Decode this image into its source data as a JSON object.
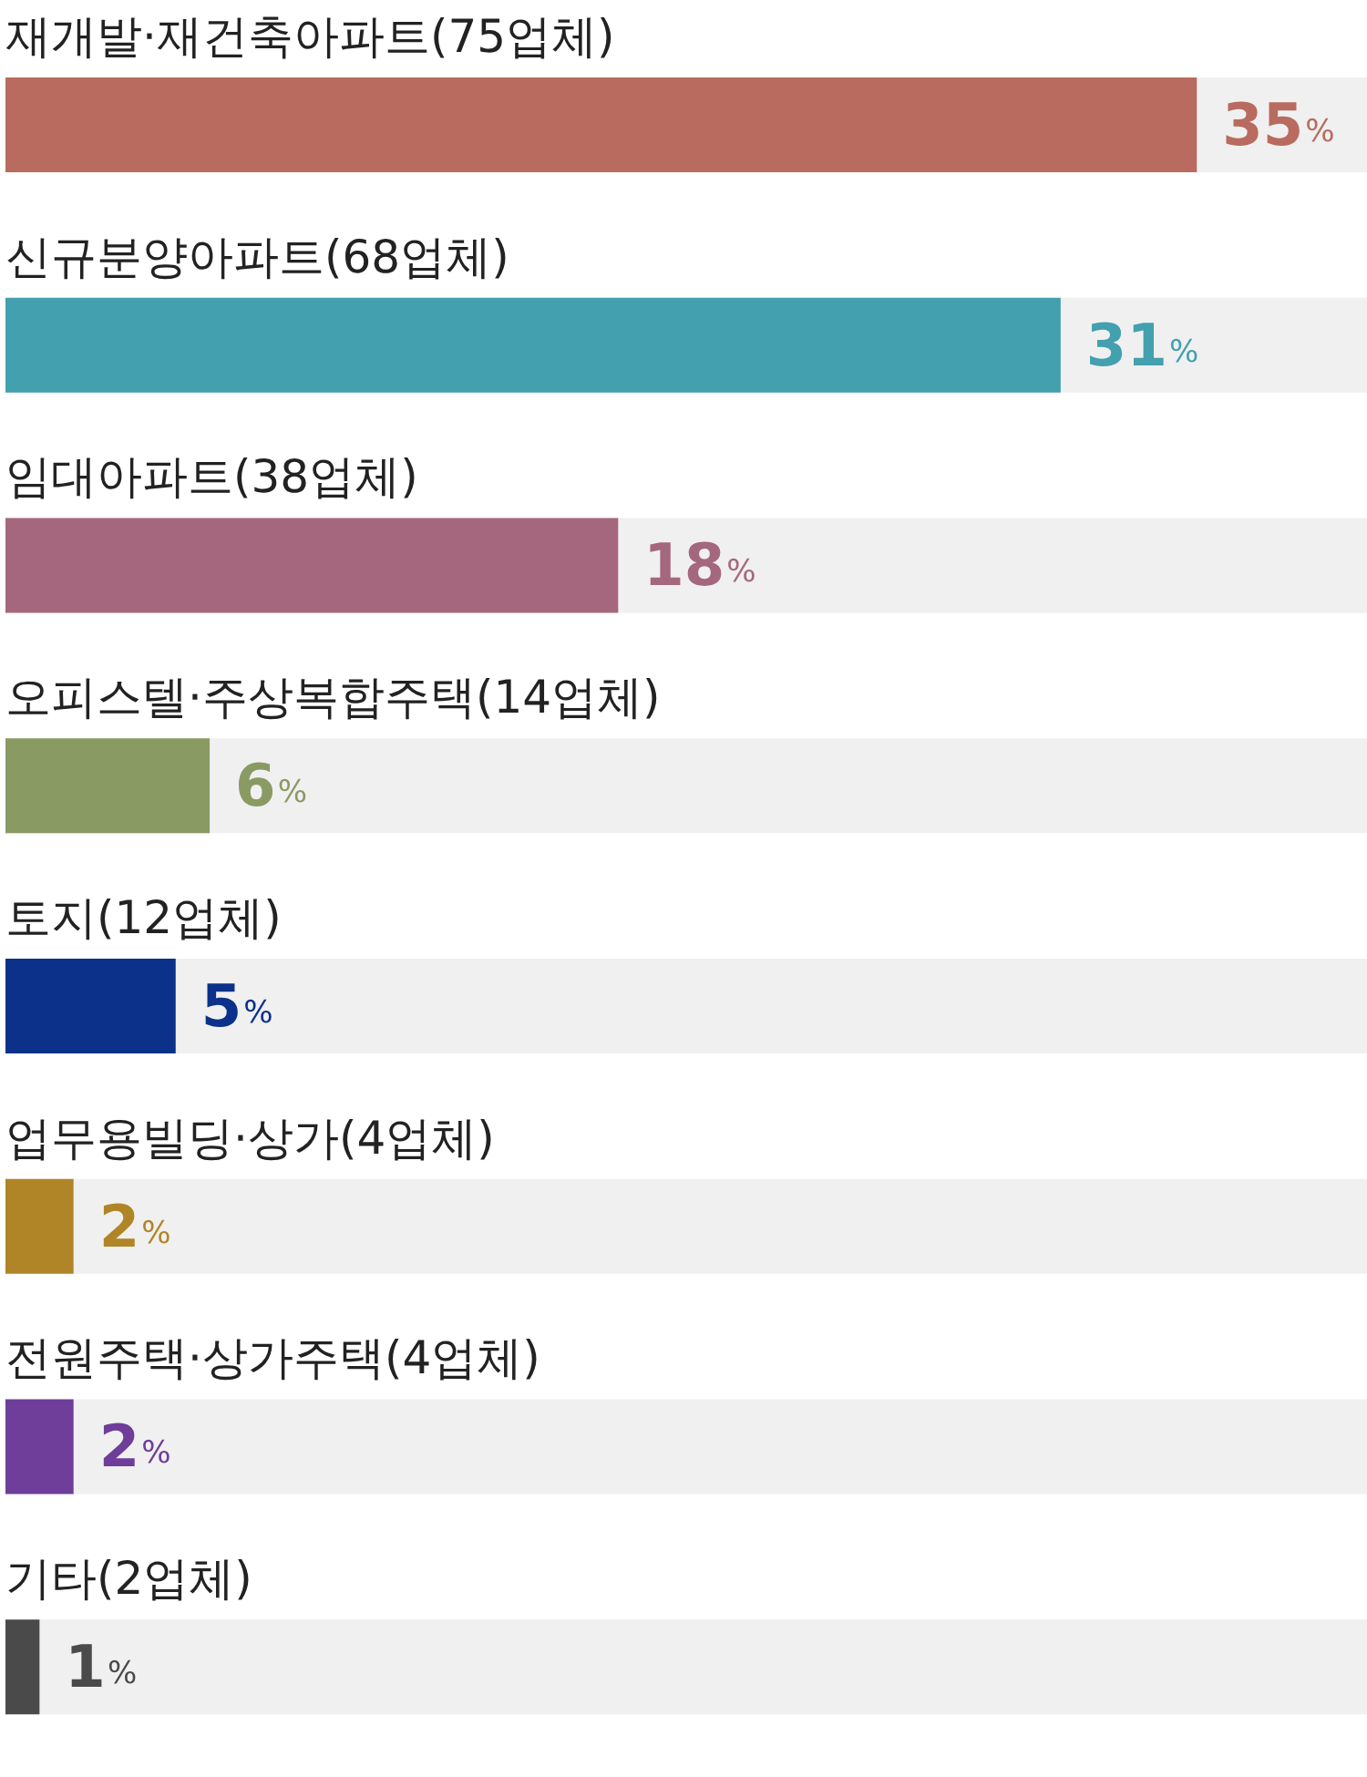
{
  "chart_data": {
    "type": "bar",
    "orientation": "horizontal",
    "categories": [
      "재개발·재건축아파트(75업체)",
      "신규분양아파트(68업체)",
      "임대아파트(38업체)",
      "오피스텔·주상복합주택(14업체)",
      "토지(12업체)",
      "업무용빌딩·상가(4업체)",
      "전원주택·상가주택(4업체)",
      "기타(2업체)"
    ],
    "values": [
      35,
      31,
      18,
      6,
      5,
      2,
      2,
      1
    ],
    "colors": [
      "#b86b5e",
      "#43a0ae",
      "#a5677e",
      "#8a9a63",
      "#0b318a",
      "#b08527",
      "#6f3d9a",
      "#4a4a4a"
    ],
    "value_labels": [
      "35%",
      "31%",
      "18%",
      "6%",
      "5%",
      "2%",
      "2%",
      "1%"
    ]
  }
}
